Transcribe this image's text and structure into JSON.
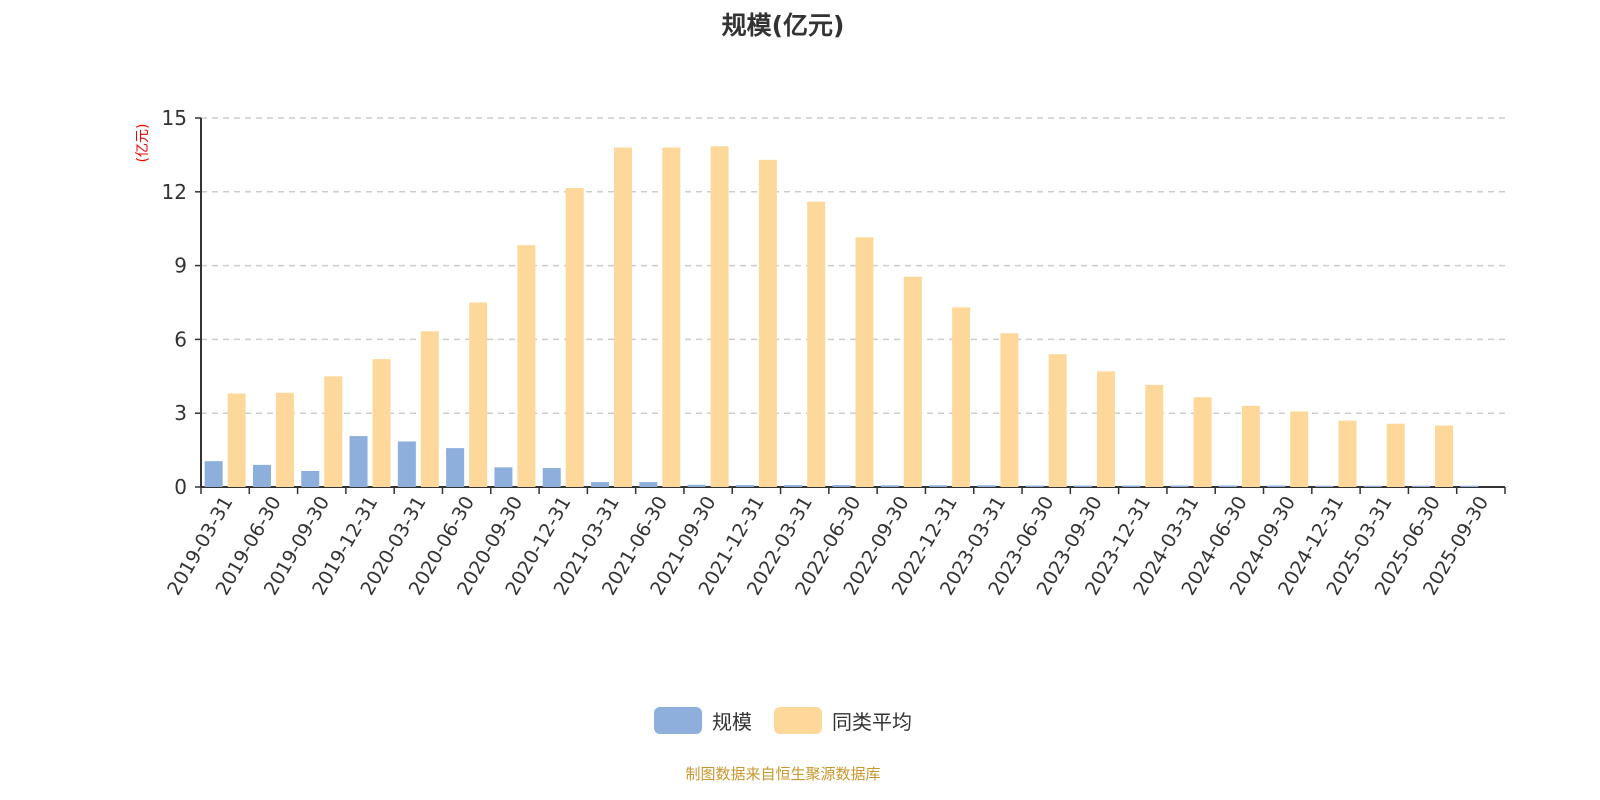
{
  "chart_data": {
    "type": "bar",
    "title": "规模(亿元)",
    "ylabel": "(亿元)",
    "xlabel": "",
    "ylim": [
      0,
      15
    ],
    "yticks": [
      0,
      3,
      6,
      9,
      12,
      15
    ],
    "grid": true,
    "legend_position": "bottom-center",
    "categories": [
      "2019-03-31",
      "2019-06-30",
      "2019-09-30",
      "2019-12-31",
      "2020-03-31",
      "2020-06-30",
      "2020-09-30",
      "2020-12-31",
      "2021-03-31",
      "2021-06-30",
      "2021-09-30",
      "2021-12-31",
      "2022-03-31",
      "2022-06-30",
      "2022-09-30",
      "2022-12-31",
      "2023-03-31",
      "2023-06-30",
      "2023-09-30",
      "2023-12-31",
      "2024-03-31",
      "2024-06-30",
      "2024-09-30",
      "2024-12-31",
      "2025-03-31",
      "2025-06-30",
      "2025-09-30"
    ],
    "series": [
      {
        "name": "规模",
        "color": "#8eaedc",
        "values": [
          1.05,
          0.9,
          0.65,
          2.07,
          1.85,
          1.58,
          0.8,
          0.77,
          0.2,
          0.2,
          0.09,
          0.08,
          0.08,
          0.08,
          0.07,
          0.07,
          0.07,
          0.06,
          0.06,
          0.06,
          0.06,
          0.06,
          0.06,
          0.05,
          0.05,
          0.05,
          0.05
        ]
      },
      {
        "name": "同类平均",
        "color": "#fed89a",
        "values": [
          3.8,
          3.83,
          4.5,
          5.2,
          6.33,
          7.5,
          9.83,
          12.15,
          13.8,
          13.8,
          13.85,
          13.3,
          11.6,
          10.15,
          8.55,
          7.3,
          6.25,
          5.4,
          4.7,
          4.15,
          3.65,
          3.3,
          3.07,
          2.7,
          2.57,
          2.5,
          null
        ]
      }
    ]
  },
  "source": "制图数据来自恒生聚源数据库"
}
